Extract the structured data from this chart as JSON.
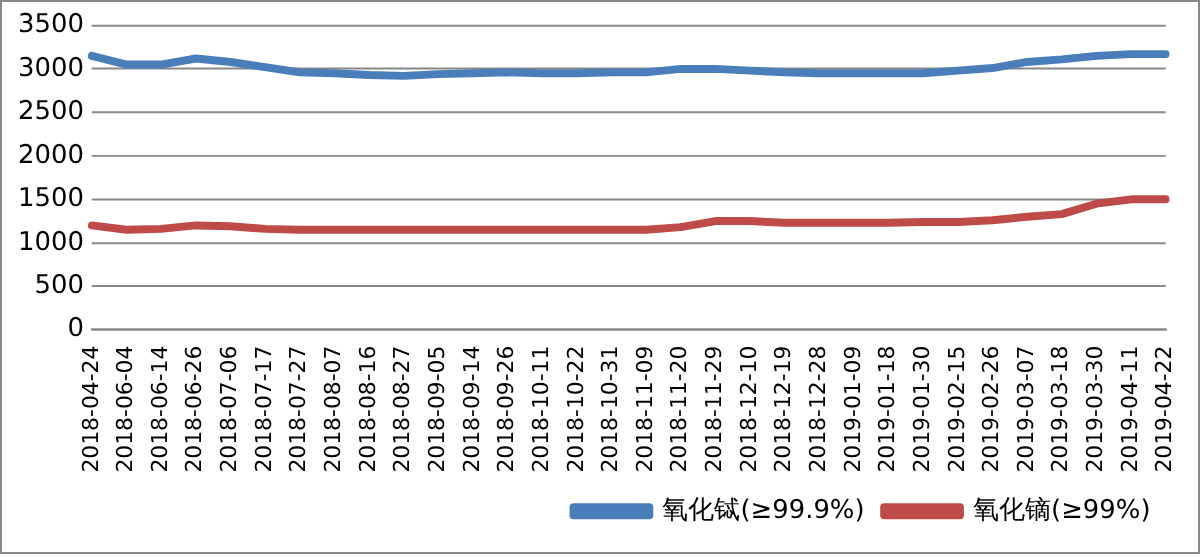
{
  "chart_data": {
    "type": "line",
    "categories": [
      "2018-04-24",
      "2018-06-04",
      "2018-06-14",
      "2018-06-26",
      "2018-07-06",
      "2018-07-17",
      "2018-07-27",
      "2018-08-07",
      "2018-08-16",
      "2018-08-27",
      "2018-09-05",
      "2018-09-14",
      "2018-09-26",
      "2018-10-11",
      "2018-10-22",
      "2018-10-31",
      "2018-11-09",
      "2018-11-20",
      "2018-11-29",
      "2018-12-10",
      "2018-12-19",
      "2018-12-28",
      "2019-01-09",
      "2019-01-18",
      "2019-01-30",
      "2019-02-15",
      "2019-02-26",
      "2019-03-07",
      "2019-03-18",
      "2019-03-30",
      "2019-04-11",
      "2019-04-22"
    ],
    "series": [
      {
        "name": "氧化铽(≥99.9%)",
        "color": "#4a7ebb",
        "values": [
          3150,
          3050,
          3050,
          3120,
          3080,
          3020,
          2960,
          2950,
          2930,
          2920,
          2940,
          2950,
          2960,
          2950,
          2950,
          2960,
          2960,
          3000,
          3000,
          2980,
          2960,
          2950,
          2950,
          2950,
          2950,
          2980,
          3010,
          3080,
          3110,
          3150,
          3170,
          3170
        ]
      },
      {
        "name": "氧化镝(≥99%)",
        "color": "#be4b48",
        "values": [
          1200,
          1150,
          1160,
          1200,
          1190,
          1160,
          1150,
          1150,
          1150,
          1150,
          1150,
          1150,
          1150,
          1150,
          1150,
          1150,
          1150,
          1180,
          1250,
          1250,
          1230,
          1230,
          1230,
          1230,
          1240,
          1240,
          1260,
          1300,
          1330,
          1450,
          1500,
          1500
        ]
      }
    ],
    "ylim": [
      0,
      3500
    ],
    "yticks": [
      0,
      500,
      1000,
      1500,
      2000,
      2500,
      3000,
      3500
    ],
    "grid": "y",
    "legend": "bottom",
    "marker": "none",
    "line_style": "solid"
  }
}
